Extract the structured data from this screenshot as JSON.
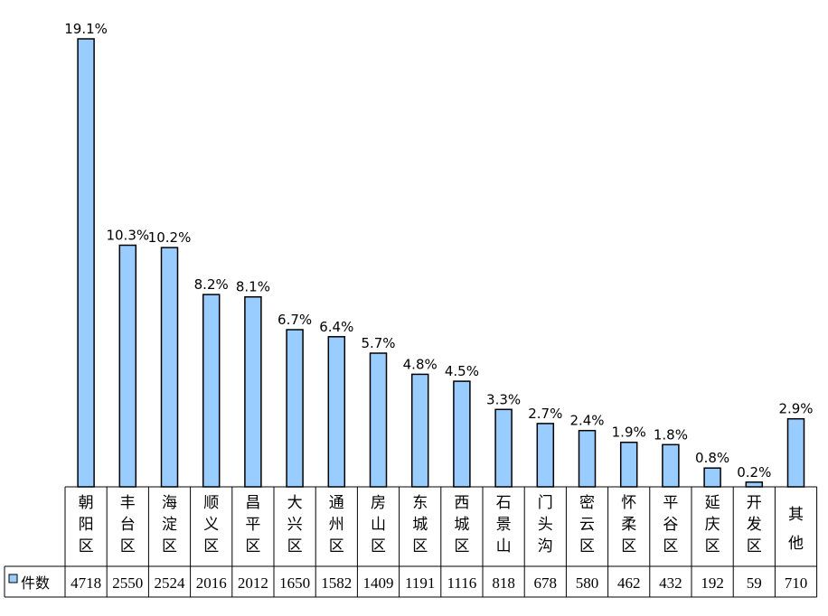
{
  "chart_data": {
    "type": "bar",
    "title": "",
    "xlabel": "",
    "ylabel": "",
    "ylim": [
      0,
      19.1
    ],
    "grid": false,
    "categories": [
      "朝阳区",
      "丰台区",
      "海淀区",
      "顺义区",
      "昌平区",
      "大兴区",
      "通州区",
      "房山区",
      "东城区",
      "西城区",
      "石景山",
      "门头沟",
      "密云区",
      "怀柔区",
      "平谷区",
      "延庆区",
      "开发区",
      "其他"
    ],
    "values": [
      19.1,
      10.3,
      10.2,
      8.2,
      8.1,
      6.7,
      6.4,
      5.7,
      4.8,
      4.5,
      3.3,
      2.7,
      2.4,
      1.9,
      1.8,
      0.8,
      0.2,
      2.9
    ],
    "value_labels": [
      "19.1%",
      "10.3%",
      "10.2%",
      "8.2%",
      "8.1%",
      "6.7%",
      "6.4%",
      "5.7%",
      "4.8%",
      "4.5%",
      "3.3%",
      "2.7%",
      "2.4%",
      "1.9%",
      "1.8%",
      "0.8%",
      "0.2%",
      "2.9%"
    ],
    "series": [
      {
        "name": "件数",
        "values": [
          4718,
          2550,
          2524,
          2016,
          2012,
          1650,
          1582,
          1409,
          1191,
          1116,
          818,
          678,
          580,
          462,
          432,
          192,
          59,
          710
        ]
      }
    ],
    "legend": "bottom-left, inside data table",
    "colors": {
      "bar_fill": "#99CCFF",
      "bar_stroke": "#000000",
      "grid_line": "#000000"
    }
  }
}
